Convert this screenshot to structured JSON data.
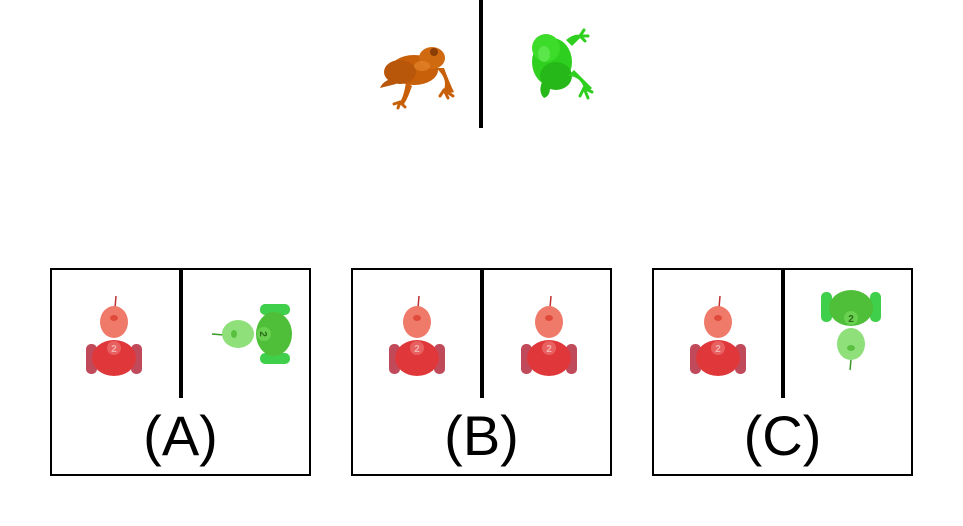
{
  "prompt": {
    "left_figure": "frog-orange",
    "right_figure": "frog-green"
  },
  "options": [
    {
      "label": "(A)",
      "left_figure": "toy-car-red",
      "right_figure": "toy-car-green"
    },
    {
      "label": "(B)",
      "left_figure": "toy-car-red",
      "right_figure": "toy-car-red"
    },
    {
      "label": "(C)",
      "left_figure": "toy-car-red",
      "right_figure": "toy-car-green"
    }
  ],
  "toy_car_number": "2",
  "colors": {
    "frog_orange": "#c8600a",
    "frog_green": "#2fcf1f",
    "car_red": "#e0383a",
    "car_red_light": "#f07a6a",
    "car_green": "#4fbf3a",
    "car_green_light": "#8fe07a",
    "line": "#000000"
  }
}
